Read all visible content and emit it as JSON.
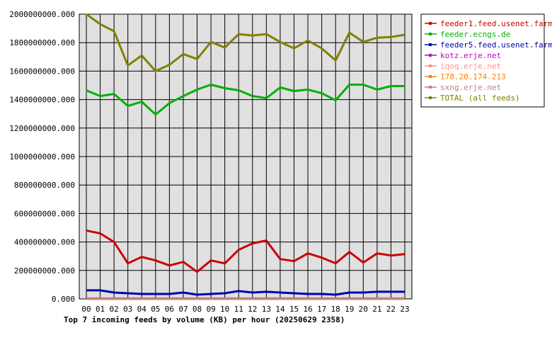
{
  "chart_data": {
    "type": "line",
    "title": "Top 7 incoming feeds by volume (KB) per hour (20250629 2358)",
    "xlabel": "",
    "ylabel": "",
    "x": [
      "00",
      "01",
      "02",
      "03",
      "04",
      "05",
      "06",
      "07",
      "08",
      "09",
      "10",
      "11",
      "12",
      "13",
      "14",
      "15",
      "16",
      "17",
      "18",
      "19",
      "20",
      "21",
      "22",
      "23"
    ],
    "ylim": [
      0,
      2000000000
    ],
    "y_ticks": [
      {
        "value": 0,
        "label": "0.000"
      },
      {
        "value": 200000000,
        "label": "200000000.000"
      },
      {
        "value": 400000000,
        "label": "400000000.000"
      },
      {
        "value": 600000000,
        "label": "600000000.000"
      },
      {
        "value": 800000000,
        "label": "800000000.000"
      },
      {
        "value": 1000000000,
        "label": "1000000000.000"
      },
      {
        "value": 1200000000,
        "label": "1200000000.000"
      },
      {
        "value": 1400000000,
        "label": "1400000000.000"
      },
      {
        "value": 1600000000,
        "label": "1600000000.000"
      },
      {
        "value": 1800000000,
        "label": "1800000000.000"
      },
      {
        "value": 2000000000,
        "label": "2000000000.000"
      }
    ],
    "grid": true,
    "legend_position": "top-right",
    "plot_background": "#e0e0e0",
    "series": [
      {
        "name": "feeder1.feed.usenet.farm",
        "color": "#cc0000",
        "values": [
          480000000,
          460000000,
          400000000,
          250000000,
          295000000,
          270000000,
          235000000,
          260000000,
          190000000,
          270000000,
          250000000,
          345000000,
          390000000,
          410000000,
          280000000,
          265000000,
          320000000,
          290000000,
          250000000,
          330000000,
          255000000,
          320000000,
          305000000,
          315000000
        ]
      },
      {
        "name": "feeder.ecngs.de",
        "color": "#00b000",
        "values": [
          1465000000,
          1425000000,
          1440000000,
          1355000000,
          1385000000,
          1295000000,
          1375000000,
          1425000000,
          1470000000,
          1505000000,
          1480000000,
          1465000000,
          1425000000,
          1410000000,
          1485000000,
          1460000000,
          1470000000,
          1445000000,
          1395000000,
          1505000000,
          1505000000,
          1470000000,
          1495000000,
          1495000000
        ]
      },
      {
        "name": "feeder5.feed.usenet.farm",
        "color": "#0000b0",
        "values": [
          60000000,
          60000000,
          45000000,
          40000000,
          35000000,
          35000000,
          35000000,
          45000000,
          30000000,
          35000000,
          40000000,
          55000000,
          45000000,
          50000000,
          45000000,
          40000000,
          35000000,
          35000000,
          30000000,
          45000000,
          45000000,
          50000000,
          50000000,
          50000000
        ]
      },
      {
        "name": "kotz.erje.net",
        "color": "#c000c0",
        "values": [
          3000000,
          3000000,
          3000000,
          3000000,
          3000000,
          3000000,
          3000000,
          3000000,
          3000000,
          3000000,
          3000000,
          3000000,
          3000000,
          3000000,
          3000000,
          3000000,
          3000000,
          3000000,
          3000000,
          3000000,
          3000000,
          3000000,
          3000000,
          3000000
        ]
      },
      {
        "name": "iqoq.erje.net",
        "color": "#ff9090",
        "values": [
          2000000,
          2000000,
          2000000,
          2000000,
          2000000,
          2000000,
          2000000,
          2000000,
          2000000,
          2000000,
          2000000,
          2000000,
          2000000,
          2000000,
          2000000,
          2000000,
          2000000,
          2000000,
          2000000,
          2000000,
          2000000,
          2000000,
          2000000,
          2000000
        ]
      },
      {
        "name": "178.20.174.213",
        "color": "#ff8000",
        "values": [
          1000000,
          1000000,
          1000000,
          1000000,
          1000000,
          1000000,
          1000000,
          1000000,
          1000000,
          1000000,
          1000000,
          1000000,
          1000000,
          1000000,
          1000000,
          1000000,
          1000000,
          1000000,
          1000000,
          1000000,
          1000000,
          1000000,
          1000000,
          1000000
        ]
      },
      {
        "name": "sxng.erje.net",
        "color": "#c08080",
        "values": [
          1000000,
          1000000,
          1000000,
          1000000,
          1000000,
          1000000,
          1000000,
          1000000,
          1000000,
          1000000,
          1000000,
          1000000,
          1000000,
          1000000,
          1000000,
          1000000,
          1000000,
          1000000,
          1000000,
          1000000,
          1000000,
          1000000,
          1000000,
          1000000
        ]
      },
      {
        "name": "TOTAL (all feeds)",
        "color": "#808000",
        "values": [
          2000000000,
          1930000000,
          1880000000,
          1640000000,
          1710000000,
          1600000000,
          1645000000,
          1720000000,
          1685000000,
          1805000000,
          1765000000,
          1860000000,
          1850000000,
          1860000000,
          1805000000,
          1760000000,
          1815000000,
          1760000000,
          1675000000,
          1870000000,
          1805000000,
          1835000000,
          1840000000,
          1855000000
        ]
      }
    ]
  }
}
